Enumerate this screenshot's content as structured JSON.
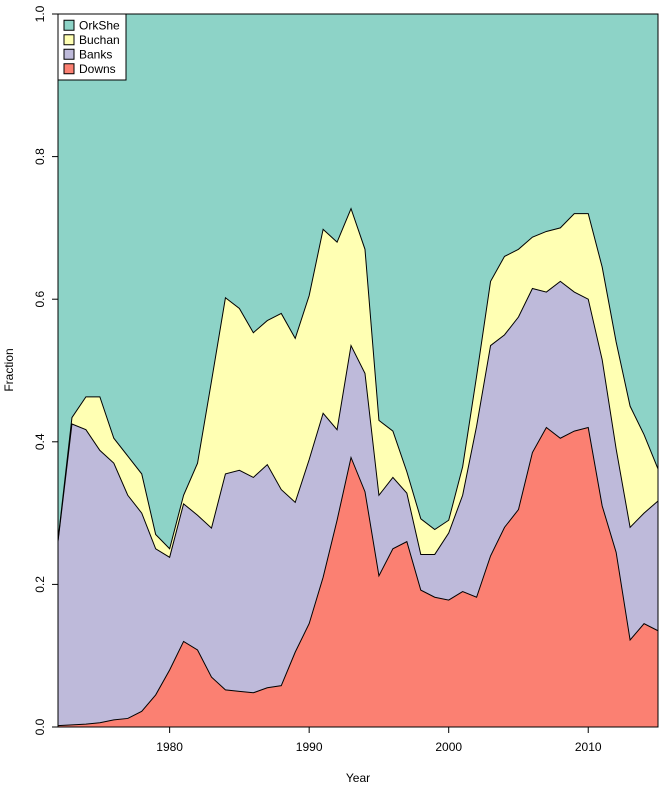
{
  "chart_data": {
    "type": "area",
    "stacking": "fraction",
    "title": "",
    "xlabel": "Year",
    "ylabel": "Fraction",
    "xlim": [
      1972,
      2015
    ],
    "ylim": [
      0,
      1
    ],
    "x_ticks": [
      1980,
      1990,
      2000,
      2010
    ],
    "y_ticks": [
      0.0,
      0.2,
      0.4,
      0.6,
      0.8,
      1.0
    ],
    "y_tick_labels": [
      "0.0",
      "0.2",
      "0.4",
      "0.6",
      "0.8",
      "1.0"
    ],
    "grid": false,
    "legend_position": "top-left",
    "x": [
      1972,
      1973,
      1974,
      1975,
      1976,
      1977,
      1978,
      1979,
      1980,
      1981,
      1982,
      1983,
      1984,
      1985,
      1986,
      1987,
      1988,
      1989,
      1990,
      1991,
      1992,
      1993,
      1994,
      1995,
      1996,
      1997,
      1998,
      1999,
      2000,
      2001,
      2002,
      2003,
      2004,
      2005,
      2006,
      2007,
      2008,
      2009,
      2010,
      2011,
      2012,
      2013,
      2014,
      2015
    ],
    "series": [
      {
        "name": "Downs",
        "color": "#FB8072",
        "values": [
          0.002,
          0.003,
          0.004,
          0.006,
          0.01,
          0.012,
          0.022,
          0.045,
          0.08,
          0.12,
          0.108,
          0.07,
          0.052,
          0.05,
          0.048,
          0.055,
          0.058,
          0.105,
          0.145,
          0.21,
          0.29,
          0.378,
          0.33,
          0.212,
          0.25,
          0.26,
          0.192,
          0.182,
          0.178,
          0.19,
          0.182,
          0.24,
          0.28,
          0.305,
          0.385,
          0.42,
          0.405,
          0.415,
          0.42,
          0.31,
          0.245,
          0.122,
          0.145,
          0.135
        ]
      },
      {
        "name": "Banks",
        "color": "#BEBADA",
        "values": [
          0.258,
          0.422,
          0.413,
          0.382,
          0.36,
          0.313,
          0.278,
          0.205,
          0.158,
          0.193,
          0.189,
          0.209,
          0.303,
          0.31,
          0.302,
          0.313,
          0.275,
          0.21,
          0.23,
          0.23,
          0.127,
          0.157,
          0.166,
          0.113,
          0.1,
          0.068,
          0.05,
          0.06,
          0.094,
          0.135,
          0.24,
          0.295,
          0.27,
          0.27,
          0.23,
          0.19,
          0.22,
          0.195,
          0.18,
          0.205,
          0.145,
          0.158,
          0.155,
          0.182
        ]
      },
      {
        "name": "Buchan",
        "color": "#FFFFB3",
        "values": [
          0.002,
          0.009,
          0.046,
          0.075,
          0.035,
          0.055,
          0.055,
          0.02,
          0.012,
          0.012,
          0.073,
          0.206,
          0.247,
          0.227,
          0.203,
          0.202,
          0.247,
          0.23,
          0.23,
          0.258,
          0.263,
          0.192,
          0.174,
          0.105,
          0.065,
          0.03,
          0.05,
          0.035,
          0.018,
          0.04,
          0.07,
          0.09,
          0.11,
          0.095,
          0.072,
          0.085,
          0.075,
          0.11,
          0.12,
          0.13,
          0.15,
          0.17,
          0.11,
          0.045
        ]
      },
      {
        "name": "OrkShe",
        "color": "#8DD3C7",
        "values": [
          0.738,
          0.566,
          0.537,
          0.537,
          0.595,
          0.62,
          0.645,
          0.73,
          0.75,
          0.675,
          0.63,
          0.515,
          0.398,
          0.413,
          0.447,
          0.43,
          0.42,
          0.455,
          0.395,
          0.302,
          0.32,
          0.273,
          0.33,
          0.57,
          0.585,
          0.642,
          0.708,
          0.723,
          0.71,
          0.635,
          0.508,
          0.375,
          0.34,
          0.33,
          0.313,
          0.305,
          0.3,
          0.28,
          0.28,
          0.355,
          0.46,
          0.55,
          0.59,
          0.638
        ]
      }
    ]
  }
}
